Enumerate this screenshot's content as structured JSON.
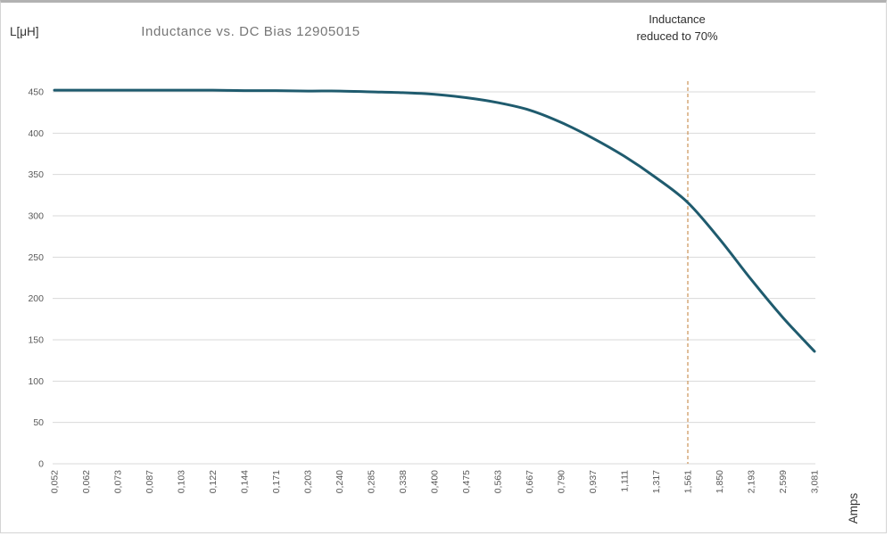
{
  "chart": {
    "title": "Inductance vs. DC Bias 12905015",
    "y_axis_title": "L[μH]",
    "x_axis_title": "Amps",
    "annotation_line1": "Inductance",
    "annotation_line2": "reduced to 70%"
  },
  "chart_data": {
    "type": "line",
    "title": "Inductance vs. DC Bias 12905015",
    "xlabel": "Amps",
    "ylabel": "L[μH]",
    "categories": [
      "0,052",
      "0,062",
      "0,073",
      "0,087",
      "0,103",
      "0,122",
      "0,144",
      "0,171",
      "0,203",
      "0,240",
      "0,285",
      "0,338",
      "0,400",
      "0,475",
      "0,563",
      "0,667",
      "0,790",
      "0,937",
      "1,111",
      "1,317",
      "1,561",
      "1,850",
      "2,193",
      "2,599",
      "3,081"
    ],
    "series": [
      {
        "name": "Inductance",
        "values": [
          452,
          452,
          452,
          452,
          452,
          452,
          451.5,
          451.5,
          451,
          451,
          450,
          449,
          447,
          443,
          437,
          428,
          413,
          394,
          372,
          346,
          316,
          272,
          223,
          177,
          136
        ]
      }
    ],
    "ylim": [
      0,
      463
    ],
    "yticks": [
      0,
      50,
      100,
      150,
      200,
      250,
      300,
      350,
      400,
      450
    ],
    "grid": "horizontal",
    "legend": "none",
    "line_smooth": true,
    "threshold_line": {
      "category": "1,561",
      "category_index": 20,
      "style": "dashed",
      "label": "Inductance reduced to 70%"
    }
  },
  "colors": {
    "series_line": "#1f5b6e",
    "threshold_line": "#cf9b63",
    "gridline": "#d9d9d9",
    "tick_text": "#595959",
    "title_text": "#767676",
    "dark_text": "#2f2f2f"
  }
}
